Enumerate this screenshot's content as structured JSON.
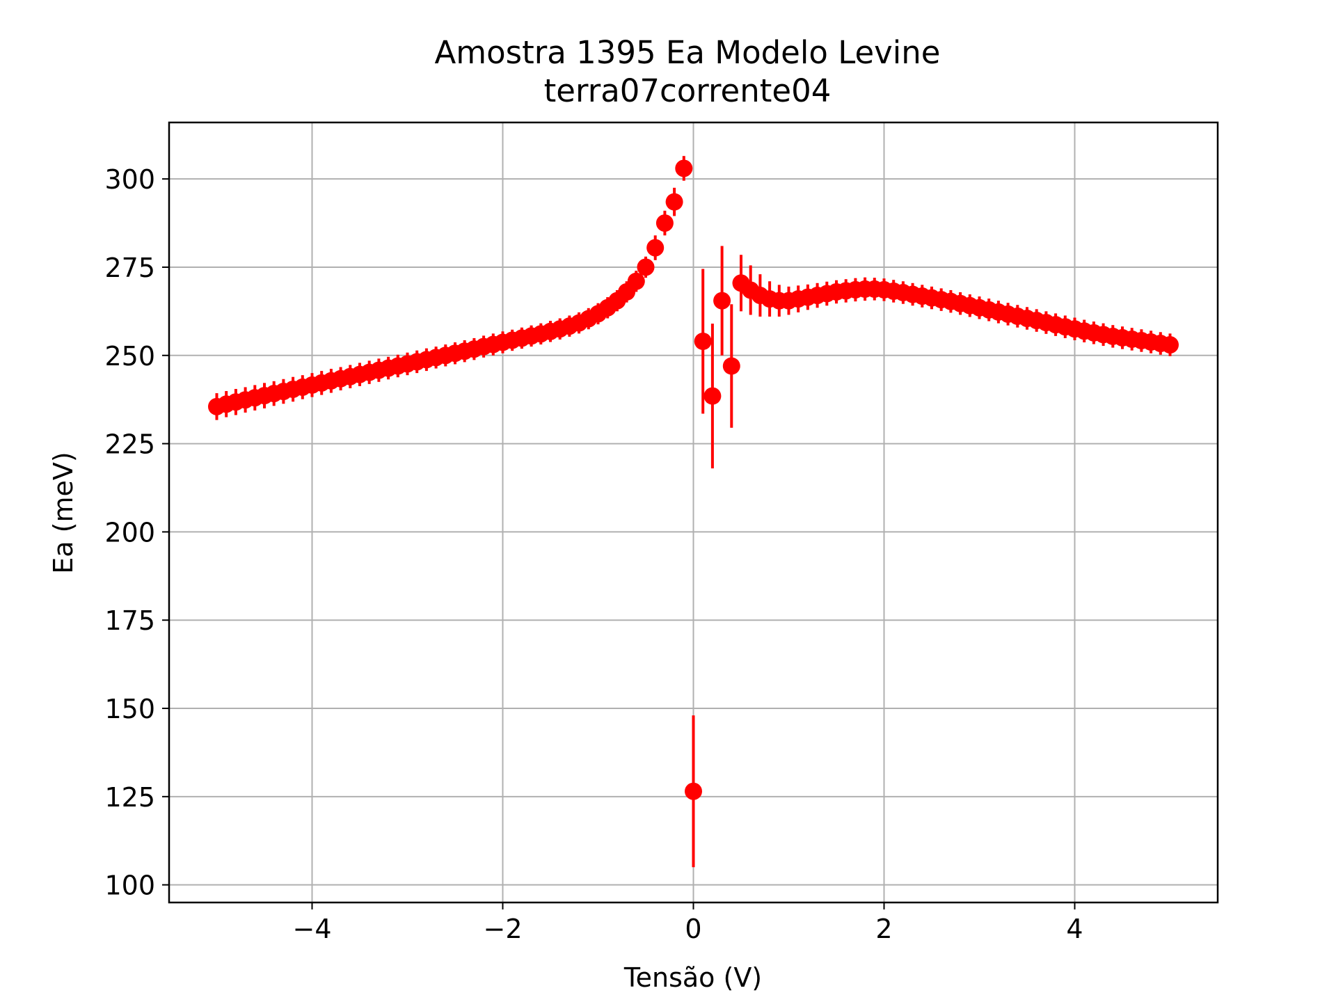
{
  "chart_data": {
    "type": "scatter",
    "title": "Amostra 1395 Ea Modelo Levine",
    "subtitle": "terra07corrente04",
    "xlabel": "Tensão (V)",
    "ylabel": "Ea (meV)",
    "xlim": [
      -5.5,
      5.5
    ],
    "ylim": [
      95,
      316
    ],
    "x_ticks": [
      -4,
      -2,
      0,
      2,
      4
    ],
    "x_tick_labels": [
      "−4",
      "−2",
      "0",
      "2",
      "4"
    ],
    "y_ticks": [
      100,
      125,
      150,
      175,
      200,
      225,
      250,
      275,
      300
    ],
    "y_tick_labels": [
      "100",
      "125",
      "150",
      "175",
      "200",
      "225",
      "250",
      "275",
      "300"
    ],
    "grid": true,
    "legend": false,
    "series": [
      {
        "color": "#ff0000",
        "marker": "circle",
        "error_bars": "vertical",
        "points": [
          [
            -5.0,
            235.5,
            3.8
          ],
          [
            -4.9,
            236.2,
            3.7
          ],
          [
            -4.8,
            236.8,
            3.7
          ],
          [
            -4.7,
            237.4,
            3.6
          ],
          [
            -4.6,
            238.0,
            3.6
          ],
          [
            -4.5,
            238.6,
            3.6
          ],
          [
            -4.4,
            239.2,
            3.5
          ],
          [
            -4.3,
            239.8,
            3.5
          ],
          [
            -4.2,
            240.4,
            3.5
          ],
          [
            -4.1,
            241.0,
            3.4
          ],
          [
            -4.0,
            241.6,
            3.4
          ],
          [
            -3.9,
            242.2,
            3.4
          ],
          [
            -3.8,
            242.8,
            3.4
          ],
          [
            -3.7,
            243.4,
            3.3
          ],
          [
            -3.6,
            244.0,
            3.3
          ],
          [
            -3.5,
            244.6,
            3.3
          ],
          [
            -3.4,
            245.2,
            3.3
          ],
          [
            -3.3,
            245.8,
            3.3
          ],
          [
            -3.2,
            246.4,
            3.2
          ],
          [
            -3.1,
            247.0,
            3.2
          ],
          [
            -3.0,
            247.6,
            3.2
          ],
          [
            -2.9,
            248.2,
            3.2
          ],
          [
            -2.8,
            248.8,
            3.2
          ],
          [
            -2.7,
            249.4,
            3.1
          ],
          [
            -2.6,
            250.0,
            3.1
          ],
          [
            -2.5,
            250.6,
            3.1
          ],
          [
            -2.4,
            251.2,
            3.1
          ],
          [
            -2.3,
            251.8,
            3.1
          ],
          [
            -2.2,
            252.5,
            3.1
          ],
          [
            -2.1,
            253.1,
            3.1
          ],
          [
            -2.0,
            253.7,
            3.1
          ],
          [
            -1.9,
            254.3,
            3.0
          ],
          [
            -1.8,
            254.9,
            3.0
          ],
          [
            -1.7,
            255.5,
            3.0
          ],
          [
            -1.6,
            256.1,
            3.0
          ],
          [
            -1.5,
            256.8,
            3.0
          ],
          [
            -1.4,
            257.5,
            3.0
          ],
          [
            -1.3,
            258.3,
            3.0
          ],
          [
            -1.2,
            259.2,
            3.0
          ],
          [
            -1.1,
            260.4,
            3.0
          ],
          [
            -1.0,
            261.8,
            3.0
          ],
          [
            -0.9,
            263.5,
            3.0
          ],
          [
            -0.8,
            265.5,
            3.0
          ],
          [
            -0.7,
            268.0,
            3.0
          ],
          [
            -0.6,
            271.0,
            3.0
          ],
          [
            -0.5,
            275.0,
            3.0
          ],
          [
            -0.4,
            280.5,
            3.5
          ],
          [
            -0.3,
            287.5,
            3.5
          ],
          [
            -0.2,
            293.5,
            4.0
          ],
          [
            -0.1,
            303.0,
            3.5
          ],
          [
            0.0,
            126.5,
            21.5
          ],
          [
            0.1,
            254.0,
            20.5
          ],
          [
            0.2,
            238.5,
            20.5
          ],
          [
            0.3,
            265.5,
            15.5
          ],
          [
            0.4,
            247.0,
            17.5
          ],
          [
            0.5,
            270.5,
            8.0
          ],
          [
            0.6,
            268.5,
            7.0
          ],
          [
            0.7,
            267.0,
            6.0
          ],
          [
            0.8,
            266.0,
            5.0
          ],
          [
            0.9,
            265.5,
            4.5
          ],
          [
            1.0,
            265.5,
            4.0
          ],
          [
            1.1,
            266.0,
            3.8
          ],
          [
            1.2,
            266.5,
            3.6
          ],
          [
            1.3,
            267.0,
            3.5
          ],
          [
            1.4,
            267.5,
            3.4
          ],
          [
            1.5,
            268.0,
            3.3
          ],
          [
            1.6,
            268.3,
            3.3
          ],
          [
            1.7,
            268.6,
            3.3
          ],
          [
            1.8,
            268.8,
            3.3
          ],
          [
            1.9,
            268.8,
            3.2
          ],
          [
            2.0,
            268.6,
            3.2
          ],
          [
            2.1,
            268.2,
            3.2
          ],
          [
            2.2,
            267.8,
            3.2
          ],
          [
            2.3,
            267.3,
            3.2
          ],
          [
            2.4,
            266.8,
            3.2
          ],
          [
            2.5,
            266.3,
            3.2
          ],
          [
            2.6,
            265.8,
            3.2
          ],
          [
            2.7,
            265.3,
            3.2
          ],
          [
            2.8,
            264.7,
            3.2
          ],
          [
            2.9,
            264.1,
            3.2
          ],
          [
            3.0,
            263.5,
            3.2
          ],
          [
            3.1,
            262.9,
            3.2
          ],
          [
            3.2,
            262.3,
            3.2
          ],
          [
            3.3,
            261.7,
            3.2
          ],
          [
            3.4,
            261.1,
            3.2
          ],
          [
            3.5,
            260.5,
            3.2
          ],
          [
            3.6,
            259.9,
            3.2
          ],
          [
            3.7,
            259.3,
            3.2
          ],
          [
            3.8,
            258.7,
            3.2
          ],
          [
            3.9,
            258.1,
            3.2
          ],
          [
            4.0,
            257.5,
            3.2
          ],
          [
            4.1,
            256.9,
            3.2
          ],
          [
            4.2,
            256.4,
            3.2
          ],
          [
            4.3,
            255.9,
            3.2
          ],
          [
            4.4,
            255.4,
            3.2
          ],
          [
            4.5,
            255.0,
            3.2
          ],
          [
            4.6,
            254.6,
            3.2
          ],
          [
            4.7,
            254.2,
            3.2
          ],
          [
            4.8,
            253.8,
            3.2
          ],
          [
            4.9,
            253.4,
            3.2
          ],
          [
            5.0,
            253.0,
            3.2
          ]
        ]
      }
    ]
  }
}
